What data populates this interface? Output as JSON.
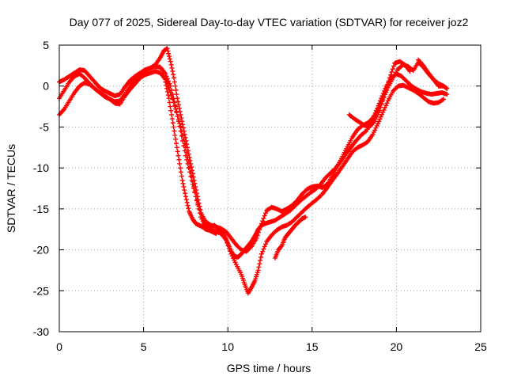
{
  "chart_data": {
    "type": "scatter",
    "title": "Day 077 of 2025, Sidereal Day-to-day VTEC variation (SDTVAR) for receiver joz2",
    "xlabel": "GPS time / hours",
    "ylabel": "SDTVAR / TECUs",
    "xlim": [
      0,
      25
    ],
    "ylim": [
      -30,
      5
    ],
    "xticks": [
      "0",
      "5",
      "10",
      "15",
      "20",
      "25"
    ],
    "yticks": [
      "5",
      "0",
      "-5",
      "-10",
      "-15",
      "-20",
      "-25",
      "-30"
    ],
    "grid": true,
    "marker": "+",
    "color": "#ff0000",
    "series": [
      {
        "x": [
          0.0,
          0.3,
          0.6,
          0.9,
          1.2,
          1.5,
          1.8,
          2.1,
          2.4,
          2.7,
          3.0,
          3.3,
          3.6,
          3.9,
          4.2,
          4.5,
          4.8,
          5.1,
          5.4,
          5.7,
          6.0,
          6.2,
          6.4,
          6.6,
          6.8,
          7.0,
          7.2,
          7.4,
          7.6,
          7.8,
          8.0,
          8.2,
          8.4,
          8.6,
          8.8,
          9.0,
          9.2,
          9.4,
          9.6,
          9.8,
          10.0,
          10.2,
          10.4,
          10.6,
          10.8,
          11.0,
          11.2,
          11.4,
          11.6,
          11.8,
          12.0,
          12.2,
          12.5,
          12.8,
          13.1,
          13.4,
          13.7,
          14.0,
          14.3,
          14.6,
          14.9,
          15.2,
          15.5,
          15.8,
          16.1,
          16.4,
          16.7,
          17.0,
          17.3,
          17.6,
          17.9,
          18.2,
          18.5,
          18.8,
          19.1,
          19.4,
          19.7,
          20.0,
          20.3,
          20.6,
          20.9,
          21.2,
          21.5,
          21.8,
          22.1,
          22.4,
          22.7,
          23.0
        ],
        "y": [
          -1.5,
          -0.5,
          0.5,
          1.2,
          1.5,
          1.0,
          0.3,
          -0.3,
          -0.8,
          -1.2,
          -1.6,
          -1.9,
          -1.8,
          -1.0,
          0.0,
          0.8,
          1.4,
          1.8,
          2.2,
          2.6,
          3.5,
          4.3,
          4.6,
          3.0,
          1.0,
          -1.5,
          -3.5,
          -5.5,
          -7.5,
          -9.5,
          -11.5,
          -13.5,
          -15.5,
          -16.8,
          -17.3,
          -17.2,
          -17.0,
          -17.4,
          -17.8,
          -18.3,
          -19.2,
          -20.2,
          -20.8,
          -20.9,
          -20.5,
          -20.0,
          -19.5,
          -19.0,
          -18.3,
          -17.5,
          -17.0,
          -16.8,
          -16.6,
          -16.4,
          -16.0,
          -15.6,
          -15.2,
          -14.6,
          -14.0,
          -13.5,
          -13.0,
          -12.6,
          -12.0,
          -11.2,
          -10.6,
          -10.0,
          -9.2,
          -8.3,
          -7.5,
          -6.7,
          -6.0,
          -5.5,
          -4.5,
          -3.0,
          -1.5,
          0.0,
          1.0,
          1.5,
          1.2,
          0.6,
          0.0,
          -0.4,
          -0.7,
          -0.9,
          -1.0,
          -0.9,
          -0.8,
          -1.0
        ]
      },
      {
        "x": [
          0.0,
          0.3,
          0.6,
          0.9,
          1.2,
          1.5,
          1.8,
          2.1,
          2.4,
          2.7,
          3.0,
          3.3,
          3.6,
          3.9,
          4.2,
          4.5,
          4.8,
          5.1,
          5.4,
          5.7,
          6.0,
          6.3,
          6.6,
          6.9,
          7.2,
          7.5,
          7.8,
          8.1,
          8.4,
          8.7,
          9.0,
          9.3,
          9.6,
          9.9,
          10.2,
          10.5,
          10.8,
          11.0,
          11.2,
          11.4,
          11.6,
          11.8,
          12.0,
          12.3,
          12.6,
          12.9,
          13.2,
          13.5,
          13.8,
          14.1,
          14.4,
          14.7,
          15.0,
          15.3,
          15.6,
          15.9,
          16.2,
          16.5,
          16.8,
          17.1,
          17.4,
          17.7,
          18.0,
          18.3,
          18.6,
          18.9,
          19.2,
          19.5,
          19.8,
          20.1,
          20.4,
          20.7,
          21.0,
          21.3,
          21.6,
          21.9,
          22.2,
          22.5,
          22.8
        ],
        "y": [
          -3.5,
          -2.8,
          -1.8,
          -0.8,
          0.0,
          0.4,
          0.2,
          -0.3,
          -0.8,
          -1.3,
          -1.6,
          -2.1,
          -2.2,
          -1.2,
          -0.4,
          0.3,
          1.0,
          1.4,
          1.6,
          1.8,
          1.6,
          0.8,
          -0.8,
          -2.8,
          -5.0,
          -7.5,
          -10.5,
          -13.5,
          -16.0,
          -17.2,
          -17.6,
          -17.8,
          -18.0,
          -18.8,
          -20.5,
          -21.8,
          -23.0,
          -24.2,
          -25.3,
          -24.6,
          -23.8,
          -22.5,
          -20.5,
          -19.0,
          -18.2,
          -17.6,
          -17.2,
          -17.0,
          -16.6,
          -16.0,
          -15.4,
          -14.8,
          -14.3,
          -13.8,
          -13.2,
          -12.4,
          -11.5,
          -10.7,
          -9.8,
          -8.9,
          -8.0,
          -7.5,
          -7.2,
          -6.8,
          -5.9,
          -4.6,
          -3.2,
          -1.8,
          -0.6,
          0.0,
          0.1,
          -0.2,
          -0.5,
          -0.9,
          -1.4,
          -1.9,
          -2.1,
          -2.0,
          -1.6
        ]
      },
      {
        "x": [
          0.0,
          0.3,
          0.6,
          0.9,
          1.2,
          1.5,
          1.8,
          2.1,
          2.4,
          2.7,
          3.0,
          3.3,
          3.6,
          3.9,
          4.2,
          4.5,
          4.8,
          5.1,
          5.4,
          5.7,
          6.0,
          6.3,
          6.6,
          6.9,
          7.2,
          7.5,
          7.8,
          8.1,
          8.4,
          8.7,
          9.0,
          9.3,
          9.6,
          9.9,
          10.2,
          10.5,
          10.8,
          11.1,
          11.4,
          11.7,
          12.0,
          12.3,
          12.6,
          12.9,
          13.2,
          13.5,
          13.8,
          14.1,
          14.4,
          14.7,
          15.0,
          15.3,
          15.6,
          15.9,
          16.2,
          16.5,
          16.8,
          17.1,
          17.4,
          17.7,
          18.0,
          18.3,
          18.6,
          18.9,
          19.2,
          19.5,
          19.8,
          20.1,
          20.4,
          20.7,
          21.0,
          21.3,
          21.6,
          21.9,
          22.2,
          22.5,
          22.8
        ],
        "y": [
          0.5,
          0.8,
          1.2,
          1.6,
          2.0,
          1.9,
          1.2,
          0.5,
          -0.2,
          -0.6,
          -0.9,
          -1.2,
          -1.0,
          -0.1,
          0.7,
          1.2,
          1.6,
          2.0,
          2.2,
          2.4,
          2.3,
          1.5,
          0.0,
          -2.5,
          -5.5,
          -8.5,
          -11.0,
          -13.5,
          -15.5,
          -16.6,
          -17.0,
          -17.2,
          -17.4,
          -17.8,
          -18.6,
          -19.4,
          -20.0,
          -20.2,
          -19.6,
          -18.6,
          -16.8,
          -15.2,
          -14.8,
          -15.0,
          -15.3,
          -15.0,
          -14.6,
          -14.0,
          -13.2,
          -12.6,
          -12.3,
          -12.2,
          -12.4,
          -12.0,
          -11.0,
          -9.8,
          -8.6,
          -7.4,
          -6.2,
          -5.3,
          -4.8,
          -4.5,
          -3.9,
          -3.0,
          -1.6,
          -0.2,
          1.0,
          2.1,
          2.6,
          2.4,
          1.9,
          2.9,
          2.3,
          1.5,
          0.8,
          0.3,
          0.0
        ]
      },
      {
        "x": [
          6.3,
          6.5,
          6.7,
          6.9,
          7.1,
          7.3,
          7.5,
          7.7,
          7.9,
          8.1,
          8.3,
          8.5,
          8.7,
          8.9,
          9.1,
          9.3
        ],
        "y": [
          0.5,
          -1.5,
          -4.0,
          -6.5,
          -9.0,
          -11.5,
          -13.5,
          -15.3,
          -16.2,
          -16.8,
          -17.0,
          -17.2,
          -17.5,
          -17.6,
          -17.8,
          -18.0
        ]
      },
      {
        "x": [
          12.8,
          13.0,
          13.2,
          13.4,
          13.6,
          13.8,
          14.0,
          14.2,
          14.4,
          14.6
        ],
        "y": [
          -21.0,
          -20.0,
          -19.5,
          -18.5,
          -18.0,
          -17.5,
          -17.0,
          -16.6,
          -16.2,
          -16.0
        ]
      },
      {
        "x": [
          17.2,
          17.5,
          17.8,
          18.1,
          18.4,
          18.7,
          19.0,
          19.3,
          19.6,
          19.9,
          20.2,
          20.5,
          20.8
        ],
        "y": [
          -3.5,
          -4.0,
          -4.4,
          -4.8,
          -5.0,
          -4.3,
          -3.0,
          -1.0,
          1.0,
          2.8,
          3.0,
          2.6,
          1.8
        ]
      },
      {
        "x": [
          21.3,
          21.6,
          21.9,
          22.2,
          22.5,
          22.8,
          23.0
        ],
        "y": [
          3.2,
          2.5,
          1.6,
          0.8,
          0.0,
          0.0,
          -0.3
        ]
      }
    ]
  }
}
